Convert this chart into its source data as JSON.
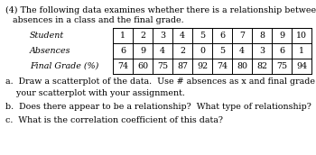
{
  "title_line1": "(4) The following data examines whether there is a relationship between the number of",
  "title_line2": "absences in a class and the final grade.",
  "students": [
    1,
    2,
    3,
    4,
    5,
    6,
    7,
    8,
    9,
    10
  ],
  "absences": [
    6,
    9,
    4,
    2,
    0,
    5,
    4,
    3,
    6,
    1
  ],
  "final_grades": [
    74,
    60,
    75,
    87,
    92,
    74,
    80,
    82,
    75,
    94
  ],
  "row_labels": [
    "Student",
    "Absences",
    "Final Grade (%)"
  ],
  "question_a": "a.  Draw a scatterplot of the data.  Use # absences as x and final grade as y.  Include",
  "question_a2": "    your scatterplot with your assignment.",
  "question_b": "b.  Does there appear to be a relationship?  What type of relationship?",
  "question_c": "c.  What is the correlation coefficient of this data?",
  "text_color": "#000000",
  "bg_color": "#ffffff",
  "font_size": 6.8,
  "table_font_size": 6.8
}
